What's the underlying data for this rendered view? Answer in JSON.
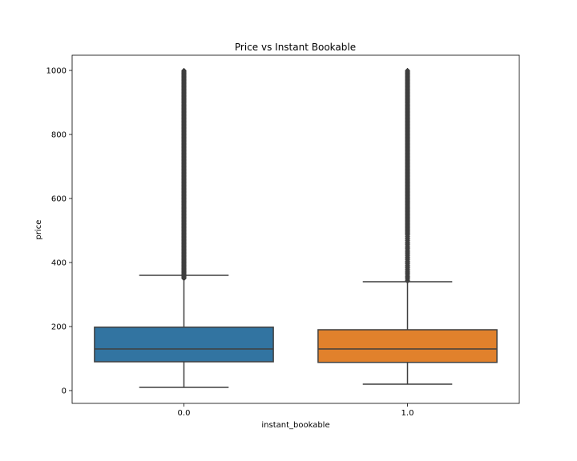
{
  "chart_data": {
    "type": "boxplot",
    "title": "Price vs Instant Bookable",
    "xlabel": "instant_bookable",
    "ylabel": "price",
    "ylim": [
      -40,
      1048
    ],
    "yticks": [
      0,
      200,
      400,
      600,
      800,
      1000
    ],
    "grid": false,
    "categories": [
      "0.0",
      "1.0"
    ],
    "series": [
      {
        "category": "0.0",
        "color": "#3274a1",
        "whisker_low": 10,
        "q1": 90,
        "median": 130,
        "q3": 198,
        "whisker_high": 360,
        "outlier_range": [
          350,
          1000
        ],
        "outlier_density": "continuous"
      },
      {
        "category": "1.0",
        "color": "#e1812c",
        "whisker_low": 20,
        "q1": 88,
        "median": 130,
        "q3": 190,
        "whisker_high": 340,
        "outlier_range": [
          340,
          1000
        ],
        "outlier_density": "dense above 490, sparse 340-490"
      }
    ]
  }
}
